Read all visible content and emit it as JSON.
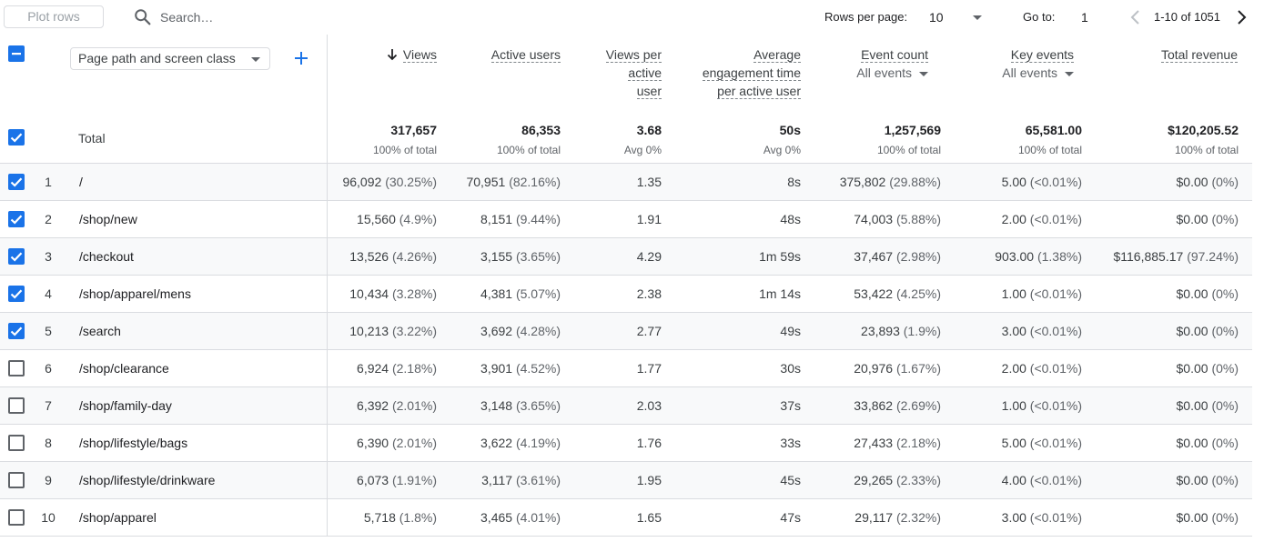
{
  "toolbar": {
    "plot_rows": "Plot rows",
    "search_placeholder": "Search…",
    "rows_per_page_label": "Rows per page:",
    "rows_per_page_value": "10",
    "goto_label": "Go to:",
    "goto_value": "1",
    "range": "1-10 of 1051"
  },
  "header": {
    "dimension": "Page path and screen class",
    "columns": [
      {
        "label": "Views",
        "sorted": "desc"
      },
      {
        "label": "Active users"
      },
      {
        "label_lines": [
          "Views per",
          "active",
          "user"
        ]
      },
      {
        "label_lines": [
          "Average",
          "engagement time",
          "per active user"
        ]
      },
      {
        "label": "Event count",
        "sub": "All events"
      },
      {
        "label": "Key events",
        "sub": "All events"
      },
      {
        "label": "Total revenue"
      }
    ]
  },
  "totals": {
    "label": "Total",
    "values": [
      {
        "value": "317,657",
        "sub": "100% of total"
      },
      {
        "value": "86,353",
        "sub": "100% of total"
      },
      {
        "value": "3.68",
        "sub": "Avg 0%"
      },
      {
        "value": "50s",
        "sub": "Avg 0%"
      },
      {
        "value": "1,257,569",
        "sub": "100% of total"
      },
      {
        "value": "65,581.00",
        "sub": "100% of total"
      },
      {
        "value": "$120,205.52",
        "sub": "100% of total"
      }
    ]
  },
  "rows": [
    {
      "n": "1",
      "checked": true,
      "path": "/",
      "views": "96,092",
      "views_pct": "(30.25%)",
      "users": "70,951",
      "users_pct": "(82.16%)",
      "vpu": "1.35",
      "eng": "8s",
      "events": "375,802",
      "events_pct": "(29.88%)",
      "key": "5.00",
      "key_pct": "(<0.01%)",
      "rev": "$0.00",
      "rev_pct": "(0%)"
    },
    {
      "n": "2",
      "checked": true,
      "path": "/shop/new",
      "views": "15,560",
      "views_pct": "(4.9%)",
      "users": "8,151",
      "users_pct": "(9.44%)",
      "vpu": "1.91",
      "eng": "48s",
      "events": "74,003",
      "events_pct": "(5.88%)",
      "key": "2.00",
      "key_pct": "(<0.01%)",
      "rev": "$0.00",
      "rev_pct": "(0%)"
    },
    {
      "n": "3",
      "checked": true,
      "path": "/checkout",
      "views": "13,526",
      "views_pct": "(4.26%)",
      "users": "3,155",
      "users_pct": "(3.65%)",
      "vpu": "4.29",
      "eng": "1m 59s",
      "events": "37,467",
      "events_pct": "(2.98%)",
      "key": "903.00",
      "key_pct": "(1.38%)",
      "rev": "$116,885.17",
      "rev_pct": "(97.24%)"
    },
    {
      "n": "4",
      "checked": true,
      "path": "/shop/apparel/mens",
      "views": "10,434",
      "views_pct": "(3.28%)",
      "users": "4,381",
      "users_pct": "(5.07%)",
      "vpu": "2.38",
      "eng": "1m 14s",
      "events": "53,422",
      "events_pct": "(4.25%)",
      "key": "1.00",
      "key_pct": "(<0.01%)",
      "rev": "$0.00",
      "rev_pct": "(0%)"
    },
    {
      "n": "5",
      "checked": true,
      "path": "/search",
      "views": "10,213",
      "views_pct": "(3.22%)",
      "users": "3,692",
      "users_pct": "(4.28%)",
      "vpu": "2.77",
      "eng": "49s",
      "events": "23,893",
      "events_pct": "(1.9%)",
      "key": "3.00",
      "key_pct": "(<0.01%)",
      "rev": "$0.00",
      "rev_pct": "(0%)"
    },
    {
      "n": "6",
      "checked": false,
      "path": "/shop/clearance",
      "views": "6,924",
      "views_pct": "(2.18%)",
      "users": "3,901",
      "users_pct": "(4.52%)",
      "vpu": "1.77",
      "eng": "30s",
      "events": "20,976",
      "events_pct": "(1.67%)",
      "key": "2.00",
      "key_pct": "(<0.01%)",
      "rev": "$0.00",
      "rev_pct": "(0%)"
    },
    {
      "n": "7",
      "checked": false,
      "path": "/shop/family-day",
      "views": "6,392",
      "views_pct": "(2.01%)",
      "users": "3,148",
      "users_pct": "(3.65%)",
      "vpu": "2.03",
      "eng": "37s",
      "events": "33,862",
      "events_pct": "(2.69%)",
      "key": "1.00",
      "key_pct": "(<0.01%)",
      "rev": "$0.00",
      "rev_pct": "(0%)"
    },
    {
      "n": "8",
      "checked": false,
      "path": "/shop/lifestyle/bags",
      "views": "6,390",
      "views_pct": "(2.01%)",
      "users": "3,622",
      "users_pct": "(4.19%)",
      "vpu": "1.76",
      "eng": "33s",
      "events": "27,433",
      "events_pct": "(2.18%)",
      "key": "5.00",
      "key_pct": "(<0.01%)",
      "rev": "$0.00",
      "rev_pct": "(0%)"
    },
    {
      "n": "9",
      "checked": false,
      "path": "/shop/lifestyle/drinkware",
      "views": "6,073",
      "views_pct": "(1.91%)",
      "users": "3,117",
      "users_pct": "(3.61%)",
      "vpu": "1.95",
      "eng": "45s",
      "events": "29,265",
      "events_pct": "(2.33%)",
      "key": "4.00",
      "key_pct": "(<0.01%)",
      "rev": "$0.00",
      "rev_pct": "(0%)"
    },
    {
      "n": "10",
      "checked": false,
      "path": "/shop/apparel",
      "views": "5,718",
      "views_pct": "(1.8%)",
      "users": "3,465",
      "users_pct": "(4.01%)",
      "vpu": "1.65",
      "eng": "47s",
      "events": "29,117",
      "events_pct": "(2.32%)",
      "key": "3.00",
      "key_pct": "(<0.01%)",
      "rev": "$0.00",
      "rev_pct": "(0%)"
    }
  ],
  "colors": {
    "accent": "#1a73e8",
    "border": "#dadce0",
    "shade": "#f8f9fa"
  }
}
